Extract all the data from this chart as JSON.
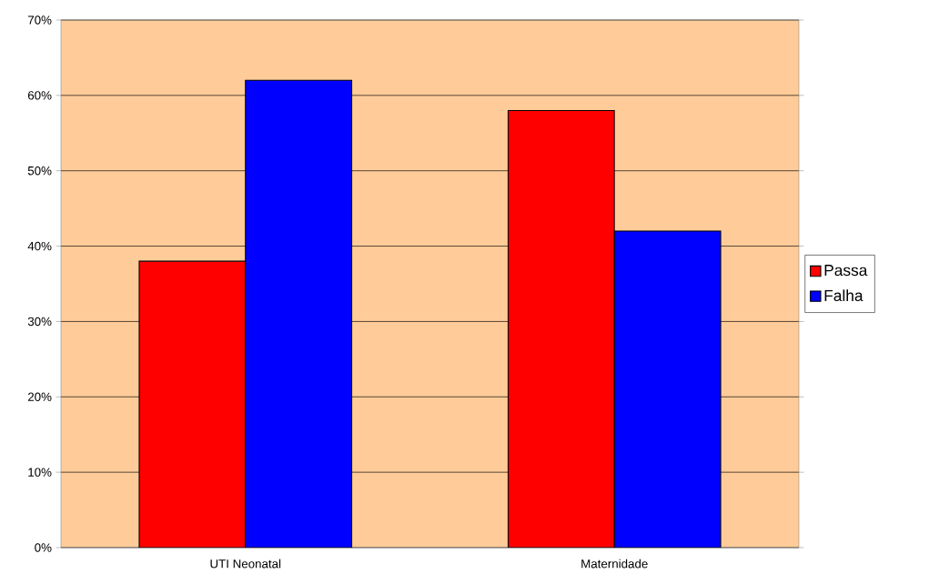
{
  "chart_data": {
    "type": "bar",
    "categories": [
      "UTI Neonatal",
      "Maternidade"
    ],
    "series": [
      {
        "name": "Passa",
        "color": "#ff0000",
        "values": [
          38,
          58
        ]
      },
      {
        "name": "Falha",
        "color": "#0000ff",
        "values": [
          62,
          42
        ]
      }
    ],
    "ylim": [
      0,
      70
    ],
    "yticks": [
      {
        "value": 0,
        "label": "0%"
      },
      {
        "value": 10,
        "label": "10%"
      },
      {
        "value": 20,
        "label": "20%"
      },
      {
        "value": 30,
        "label": "30%"
      },
      {
        "value": 40,
        "label": "40%"
      },
      {
        "value": 50,
        "label": "50%"
      },
      {
        "value": 60,
        "label": "60%"
      },
      {
        "value": 70,
        "label": "70%"
      }
    ],
    "grid": "y",
    "legend": "right"
  }
}
